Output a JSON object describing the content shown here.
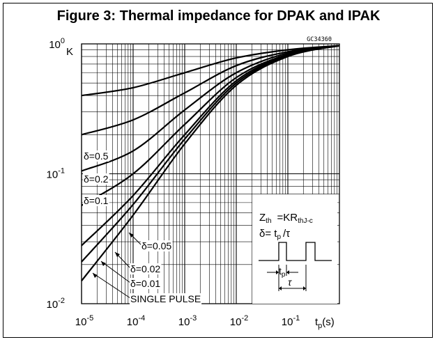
{
  "figure": {
    "title": "Figure 3: Thermal impedance for DPAK and IPAK",
    "code": "GC34360"
  },
  "chart_data": {
    "type": "line",
    "xscale": "log",
    "yscale": "log",
    "xlim": [
      1e-05,
      1
    ],
    "ylim": [
      0.01,
      1
    ],
    "ylabel": "K",
    "xlabel": "tp(s)",
    "x_ticks": [
      "10^-5",
      "10^-4",
      "10^-3",
      "10^-2",
      "10^-1"
    ],
    "y_ticks": [
      "10^0",
      "10^-1",
      "10^-2"
    ],
    "grid": true,
    "series": [
      {
        "name": "δ=0.5",
        "x": [
          1e-05,
          0.0001,
          0.001,
          0.01,
          0.1,
          1
        ],
        "y": [
          0.4,
          0.46,
          0.6,
          0.78,
          0.9,
          0.97
        ]
      },
      {
        "name": "δ=0.2",
        "x": [
          1e-05,
          0.0001,
          0.001,
          0.01,
          0.1,
          1
        ],
        "y": [
          0.2,
          0.26,
          0.42,
          0.68,
          0.87,
          0.97
        ]
      },
      {
        "name": "δ=0.1",
        "x": [
          1e-05,
          0.0001,
          0.001,
          0.01,
          0.1,
          1
        ],
        "y": [
          0.105,
          0.15,
          0.31,
          0.6,
          0.85,
          0.97
        ]
      },
      {
        "name": "δ=0.05",
        "x": [
          1e-05,
          0.0001,
          0.001,
          0.01,
          0.1,
          1
        ],
        "y": [
          0.057,
          0.1,
          0.24,
          0.55,
          0.83,
          0.97
        ]
      },
      {
        "name": "δ=0.02",
        "x": [
          1e-05,
          0.0001,
          0.001,
          0.01,
          0.1,
          1
        ],
        "y": [
          0.028,
          0.068,
          0.2,
          0.52,
          0.82,
          0.97
        ]
      },
      {
        "name": "δ=0.01",
        "x": [
          1e-05,
          0.0001,
          0.001,
          0.01,
          0.1,
          1
        ],
        "y": [
          0.021,
          0.058,
          0.185,
          0.5,
          0.81,
          0.97
        ]
      },
      {
        "name": "SINGLE PULSE",
        "x": [
          1e-05,
          0.0001,
          0.001,
          0.01,
          0.1,
          1
        ],
        "y": [
          0.015,
          0.048,
          0.17,
          0.48,
          0.8,
          0.97
        ]
      }
    ]
  },
  "inset": {
    "formula_z": "Z",
    "formula_z_sub": "th",
    "formula_eq": "=KR",
    "formula_r_sub": "thJ-c",
    "formula_delta": "δ= t",
    "formula_tp_sub": "p",
    "formula_tau": "/τ",
    "tp_label": "t",
    "tp_sub": "p",
    "tau_label": "τ"
  }
}
